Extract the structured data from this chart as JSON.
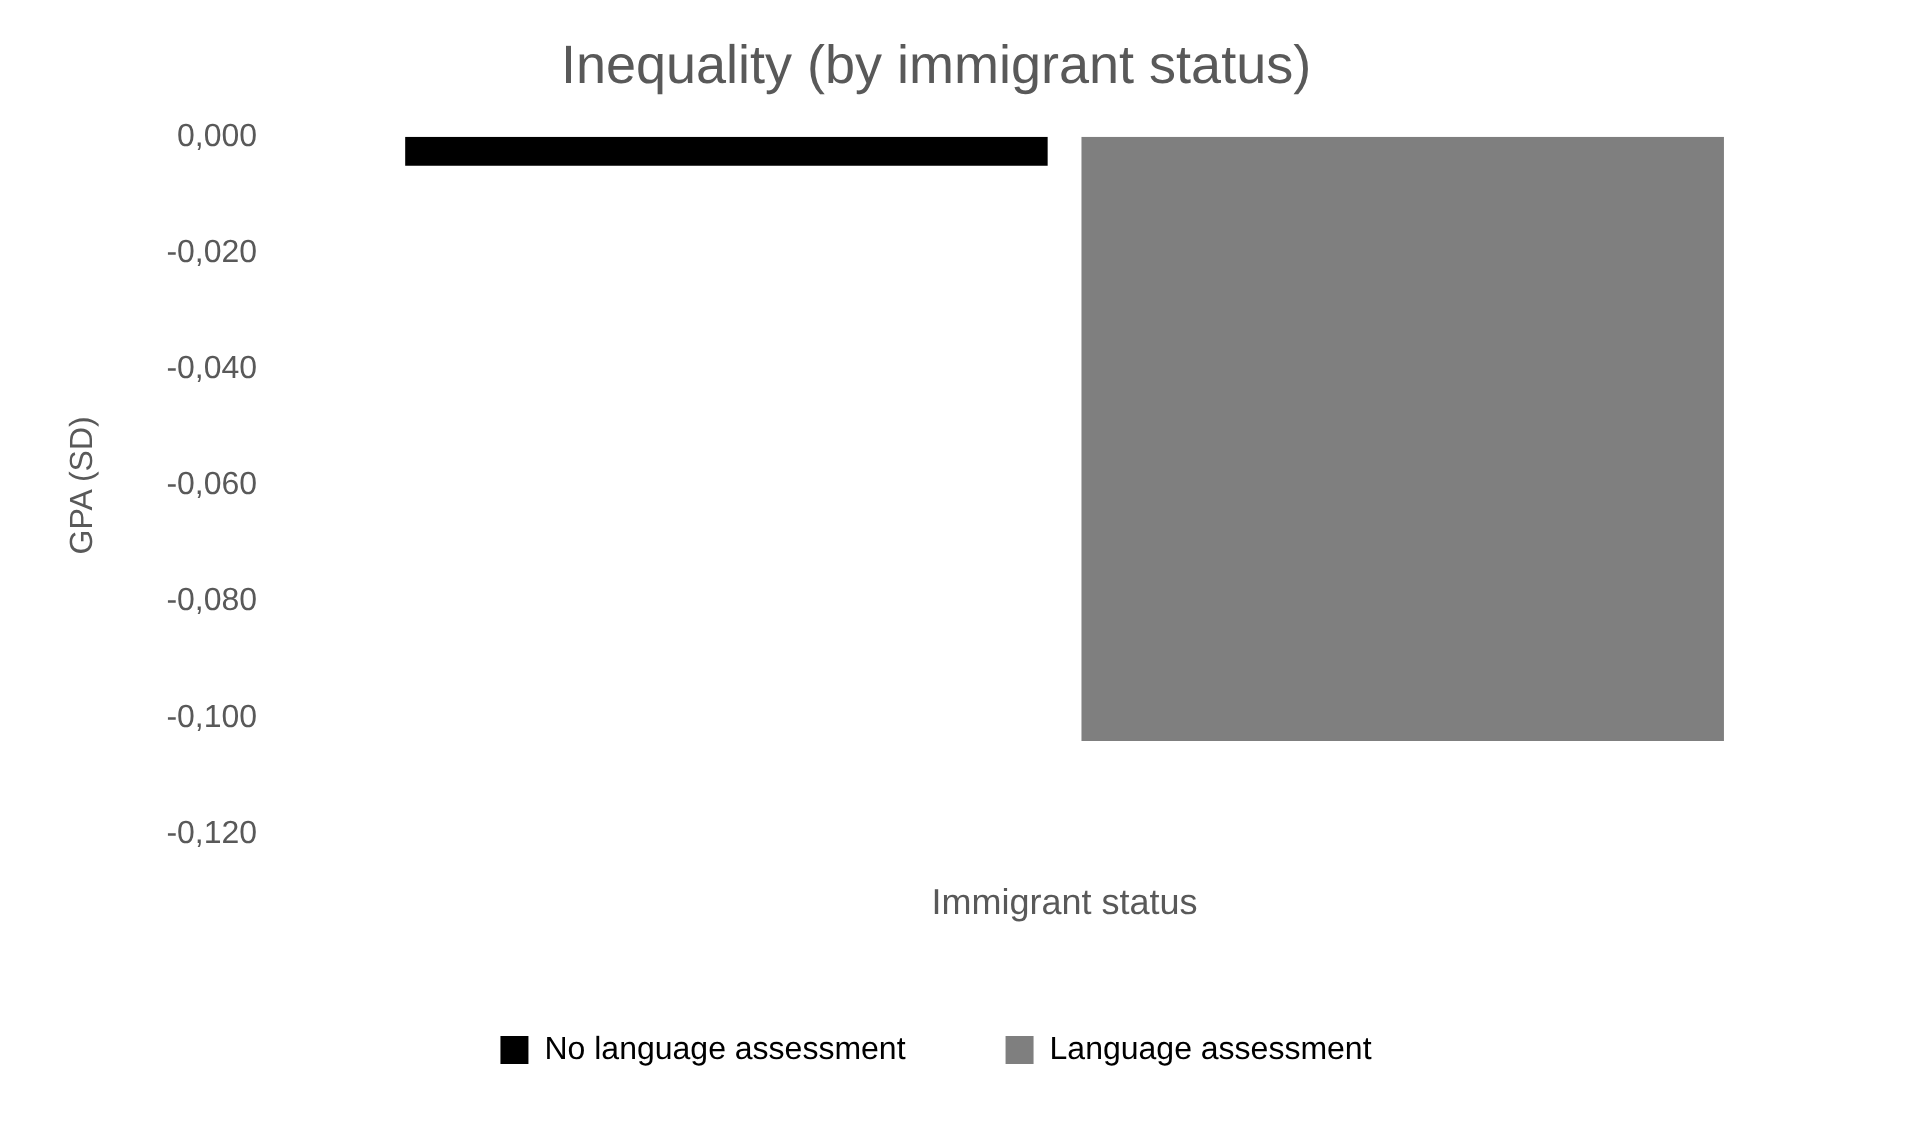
{
  "chart_data": {
    "type": "bar",
    "title": "Inequality (by immigrant status)",
    "xlabel": "Immigrant status",
    "ylabel": "GPA (SD)",
    "categories": [
      null
    ],
    "series": [
      {
        "name": "No language assessment",
        "color": "#000000",
        "values": [
          -0.005
        ]
      },
      {
        "name": "Language assessment",
        "color": "#7f7f7f",
        "values": [
          -0.104
        ]
      }
    ],
    "ylim": [
      -0.12,
      0
    ],
    "yticks": [
      {
        "value": 0,
        "label": "0,000"
      },
      {
        "value": -0.02,
        "label": "-0,020"
      },
      {
        "value": -0.04,
        "label": "-0,040"
      },
      {
        "value": -0.06,
        "label": "-0,060"
      },
      {
        "value": -0.08,
        "label": "-0,080"
      },
      {
        "value": -0.1,
        "label": "-0,100"
      },
      {
        "value": -0.12,
        "label": "-0,120"
      }
    ],
    "grid": false,
    "legend": "bottom"
  }
}
